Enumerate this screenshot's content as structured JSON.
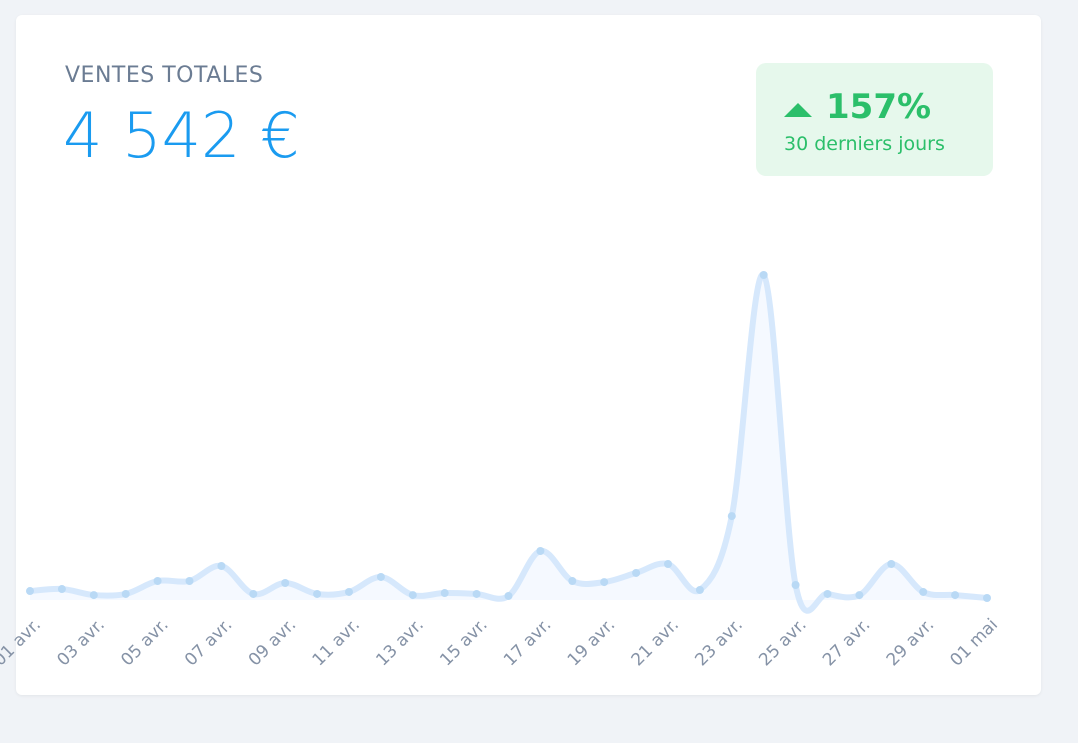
{
  "header": {
    "title": "VENTES TOTALES",
    "value": "4 542 €"
  },
  "badge": {
    "change": "157%",
    "period": "30 derniers jours"
  },
  "chart_data": {
    "type": "line",
    "categories": [
      "01 avr.",
      null,
      "03 avr.",
      null,
      "05 avr.",
      null,
      "07 avr.",
      null,
      "09 avr.",
      null,
      "11 avr.",
      null,
      "13 avr.",
      null,
      "15 avr.",
      null,
      "17 avr.",
      null,
      "19 avr.",
      null,
      "21 avr.",
      null,
      "23 avr.",
      null,
      "25 avr.",
      null,
      "27 avr.",
      null,
      "29 avr.",
      null,
      "01 mai"
    ],
    "series": [
      {
        "color": "#d6e8fc",
        "values": [
          49,
          60,
          27,
          33,
          104,
          104,
          186,
          33,
          93,
          33,
          44,
          126,
          27,
          38,
          33,
          22,
          268,
          104,
          98,
          148,
          197,
          55,
          459,
          1778,
          82,
          33,
          27,
          197,
          44,
          27,
          11
        ]
      }
    ]
  }
}
